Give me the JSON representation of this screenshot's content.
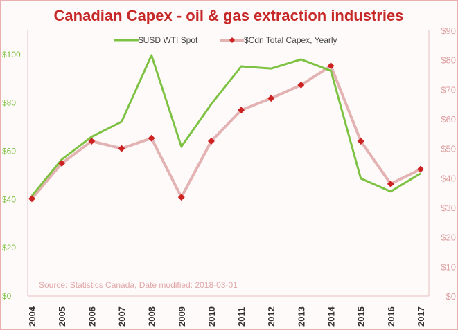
{
  "chart_data": {
    "type": "line",
    "title": "Canadian Capex - oil & gas extraction industries",
    "source_note": "Source: Statistics Canada, Date modified: 2018-03-01",
    "categories": [
      "2004",
      "2005",
      "2006",
      "2007",
      "2008",
      "2009",
      "2010",
      "2011",
      "2012",
      "2013",
      "2014",
      "2015",
      "2016",
      "2017"
    ],
    "series": [
      {
        "name": "$USD WTI Spot",
        "axis": "left",
        "color": "#7dc242",
        "values": [
          41.5,
          56.6,
          66.0,
          72.2,
          99.7,
          61.9,
          79.5,
          95.1,
          94.2,
          98.0,
          93.3,
          48.7,
          43.3,
          50.8
        ]
      },
      {
        "name": "$Cdn Total Capex, Yearly",
        "axis": "right",
        "color": "#e3b2b2",
        "marker_color": "#cc2222",
        "values": [
          33,
          45,
          52.5,
          50,
          53.5,
          33.5,
          52.5,
          63,
          67,
          71.5,
          78,
          52.5,
          38,
          43
        ]
      }
    ],
    "y_left": {
      "ylim": [
        0,
        110
      ],
      "ticks": [
        "$0",
        "$20",
        "$40",
        "$60",
        "$80",
        "$100"
      ],
      "tick_values": [
        0,
        20,
        40,
        60,
        80,
        100
      ]
    },
    "y_right": {
      "ylim": [
        0,
        90
      ],
      "ticks": [
        "$0",
        "$10",
        "$20",
        "$30",
        "$40",
        "$50",
        "$60",
        "$70",
        "$80",
        "$90"
      ],
      "tick_values": [
        0,
        10,
        20,
        30,
        40,
        50,
        60,
        70,
        80,
        90
      ]
    },
    "legend_position": "top-center",
    "grid": false
  }
}
